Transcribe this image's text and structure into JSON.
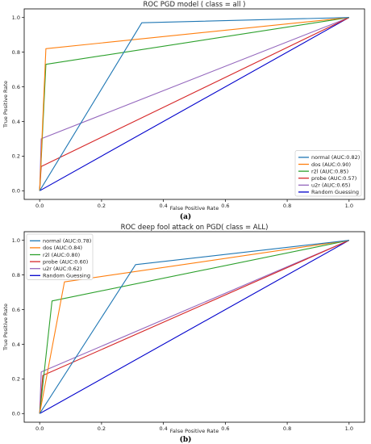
{
  "chart_data": [
    {
      "type": "line",
      "title": "ROC PGD model ( class = all )",
      "xlabel": "False Positive Rate",
      "ylabel": "True Positive Rate",
      "xlim": [
        -0.05,
        1.05
      ],
      "ylim": [
        -0.05,
        1.05
      ],
      "xticks": [
        "0.0",
        "0.2",
        "0.4",
        "0.6",
        "0.8",
        "1.0"
      ],
      "yticks": [
        "0.0",
        "0.2",
        "0.4",
        "0.6",
        "0.8",
        "1.0"
      ],
      "legend_position": "lower right",
      "caption": "(a)",
      "series": [
        {
          "name": "normal (AUC:0.82)",
          "color": "#1f77b4",
          "x": [
            0,
            0.33,
            1
          ],
          "y": [
            0,
            0.97,
            1
          ]
        },
        {
          "name": "dos (AUC:0.90)",
          "color": "#ff7f0e",
          "x": [
            0,
            0.02,
            1
          ],
          "y": [
            0,
            0.82,
            1
          ]
        },
        {
          "name": "r2l (AUC:0.85)",
          "color": "#2ca02c",
          "x": [
            0,
            0.02,
            1
          ],
          "y": [
            0,
            0.73,
            1
          ]
        },
        {
          "name": "probe (AUC:0.57)",
          "color": "#d62728",
          "x": [
            0,
            0.005,
            1
          ],
          "y": [
            0,
            0.14,
            1
          ]
        },
        {
          "name": "u2r (AUC:0.65)",
          "color": "#9467bd",
          "x": [
            0,
            0.005,
            1
          ],
          "y": [
            0,
            0.3,
            1
          ]
        },
        {
          "name": "Random Guessing",
          "color": "#0000cc",
          "x": [
            0,
            1
          ],
          "y": [
            0,
            1
          ]
        }
      ]
    },
    {
      "type": "line",
      "title": "ROC deep fool attack on PGD( class = ALL)",
      "xlabel": "False Positive Rate",
      "ylabel": "True Positive Rate",
      "xlim": [
        -0.05,
        1.05
      ],
      "ylim": [
        -0.05,
        1.05
      ],
      "xticks": [
        "0.0",
        "0.2",
        "0.4",
        "0.6",
        "0.8",
        "1.0"
      ],
      "yticks": [
        "0.0",
        "0.2",
        "0.4",
        "0.6",
        "0.8",
        "1.0"
      ],
      "legend_position": "upper left",
      "caption": "(b)",
      "series": [
        {
          "name": "normal (AUC:0.78)",
          "color": "#1f77b4",
          "x": [
            0,
            0.31,
            1
          ],
          "y": [
            0,
            0.86,
            1
          ]
        },
        {
          "name": "dos (AUC:0.84)",
          "color": "#ff7f0e",
          "x": [
            0,
            0.08,
            1
          ],
          "y": [
            0,
            0.76,
            1
          ]
        },
        {
          "name": "r2l (AUC:0.80)",
          "color": "#2ca02c",
          "x": [
            0,
            0.04,
            1
          ],
          "y": [
            0,
            0.65,
            1
          ]
        },
        {
          "name": "probe (AUC:0.60)",
          "color": "#d62728",
          "x": [
            0,
            0.01,
            1
          ],
          "y": [
            0,
            0.22,
            1
          ]
        },
        {
          "name": "u2r (AUC:0.62)",
          "color": "#9467bd",
          "x": [
            0,
            0.005,
            1
          ],
          "y": [
            0,
            0.24,
            1
          ]
        },
        {
          "name": "Random Guessing",
          "color": "#0000cc",
          "x": [
            0,
            1
          ],
          "y": [
            0,
            1
          ]
        }
      ]
    }
  ]
}
